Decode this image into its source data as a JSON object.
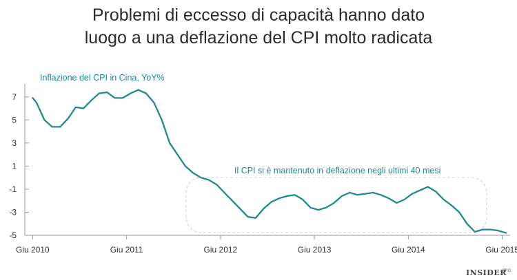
{
  "chart_data": {
    "type": "line",
    "title": [
      "Problemi di eccesso di capacità hanno dato",
      "luogo a una deflazione del CPI molto radicata"
    ],
    "series_label": "Inflazione del CPI in Cina, YoY%",
    "annotation": "Il CPI si è mantenuto in deflazione negli ultimi  40 mesi",
    "y_ticks": [
      "7",
      "5",
      "3",
      "1",
      "-1",
      "-3",
      "-5"
    ],
    "y_tick_values": [
      7,
      5,
      3,
      1,
      -1,
      -3,
      -5
    ],
    "ylim": [
      -5,
      8
    ],
    "x_ticks": [
      "Giu 2010",
      "Giu 2011",
      "Giu 2012",
      "Giu 2013",
      "Giu 2014",
      "Giu 2015"
    ],
    "x_tick_values": [
      0,
      12,
      24,
      36,
      48,
      60
    ],
    "xlim": [
      -1,
      61
    ],
    "series": [
      {
        "name": "Inflazione del CPI in Cina, YoY%",
        "color": "#1f8a8a",
        "x": [
          0,
          0.5,
          1.5,
          2.5,
          3.5,
          4.5,
          5.5,
          6.5,
          7.5,
          8.5,
          9.5,
          10.5,
          11.5,
          12.5,
          13.5,
          14.5,
          15.5,
          16.5,
          17.5,
          18.5,
          19.5,
          20.5,
          21.5,
          22.5,
          23.5,
          24.5,
          25.5,
          26.5,
          27.5,
          28.5,
          29.5,
          30.5,
          31.5,
          32.5,
          33.5,
          34.5,
          35.5,
          36.5,
          37.5,
          38.5,
          39.5,
          40.5,
          41.5,
          42.5,
          43.5,
          44.5,
          45.5,
          46.5,
          47.5,
          48.5,
          49.5,
          50.5,
          51.5,
          52.5,
          53.5,
          54.5,
          55.5,
          56.5,
          57.5,
          58.5,
          59.5,
          60.5
        ],
        "values": [
          6.9,
          6.5,
          5.0,
          4.4,
          4.4,
          5.1,
          6.1,
          6.0,
          6.7,
          7.3,
          7.4,
          6.9,
          6.9,
          7.3,
          7.6,
          7.3,
          6.5,
          5.0,
          3.0,
          2.0,
          1.0,
          0.4,
          0.0,
          -0.2,
          -0.6,
          -1.3,
          -2.0,
          -2.7,
          -3.4,
          -3.5,
          -2.7,
          -2.1,
          -1.8,
          -1.6,
          -1.5,
          -1.9,
          -2.6,
          -2.8,
          -2.6,
          -2.2,
          -1.6,
          -1.3,
          -1.5,
          -1.4,
          -1.3,
          -1.5,
          -1.8,
          -2.2,
          -1.9,
          -1.4,
          -1.1,
          -0.8,
          -1.2,
          -1.9,
          -2.4,
          -3.0,
          -4.0,
          -4.7,
          -4.5,
          -4.5,
          -4.6,
          -4.8
        ]
      }
    ]
  },
  "brand": {
    "name": "INSIDER",
    "sup": "PRO"
  }
}
